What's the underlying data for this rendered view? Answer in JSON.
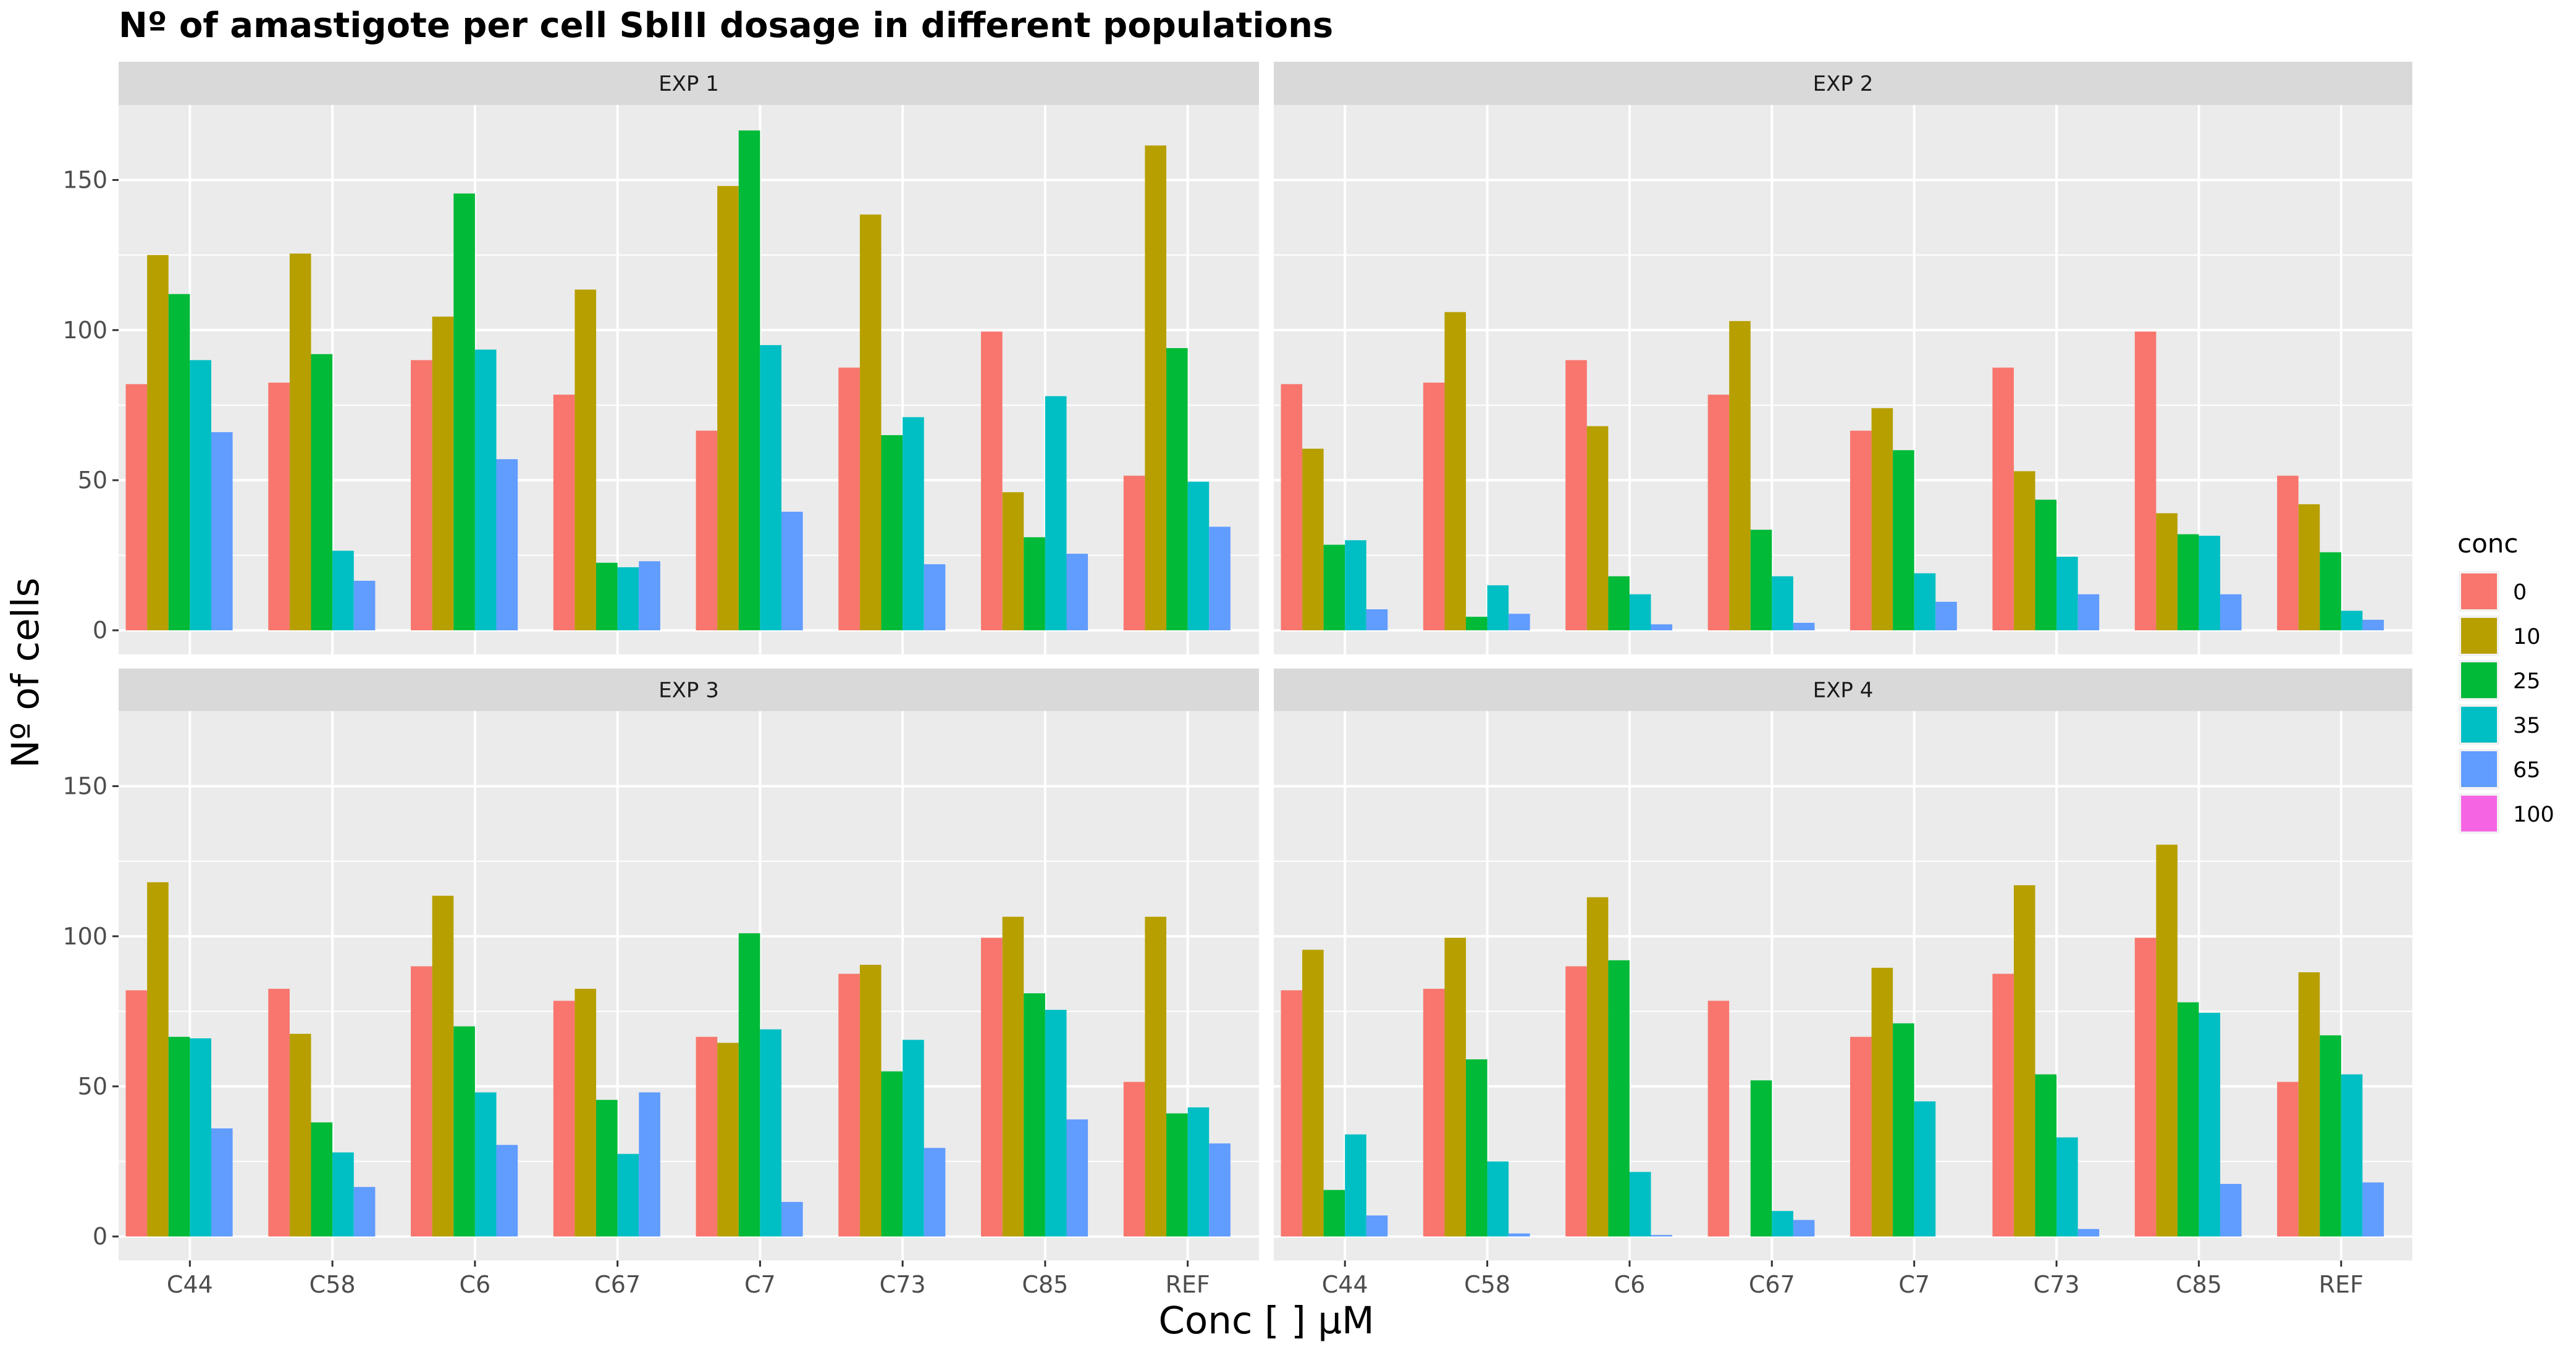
{
  "chart_data": {
    "type": "bar",
    "title": "Nº of amastigote per cell SbIII dosage in different populations",
    "xlabel": "Conc [   ] µM",
    "ylabel": "Nº of cells",
    "ylim": [
      -8,
      175
    ],
    "yticks": [
      0,
      50,
      100,
      150
    ],
    "categories": [
      "C44",
      "C58",
      "C6",
      "C67",
      "C7",
      "C73",
      "C85",
      "REF"
    ],
    "legend": {
      "title": "conc",
      "placement": "right",
      "keys": [
        "0",
        "10",
        "25",
        "35",
        "65",
        "100"
      ],
      "colors": [
        "#F8766D",
        "#B79F00",
        "#00BA38",
        "#00BFC4",
        "#619CFF",
        "#F564E3"
      ]
    },
    "grid": true,
    "panels": [
      {
        "label": "EXP 1",
        "series": [
          {
            "name": "0",
            "values": [
              82,
              82.5,
              90,
              78.5,
              66.5,
              87.5,
              99.5,
              51.5
            ]
          },
          {
            "name": "10",
            "values": [
              125,
              125.5,
              104.5,
              113.5,
              148,
              138.5,
              46,
              161.5
            ]
          },
          {
            "name": "25",
            "values": [
              112,
              92,
              145.5,
              22.5,
              166.5,
              65,
              31,
              94
            ]
          },
          {
            "name": "35",
            "values": [
              90,
              26.5,
              93.5,
              21,
              95,
              71,
              78,
              49.5
            ]
          },
          {
            "name": "65",
            "values": [
              66,
              16.5,
              57,
              23,
              39.5,
              22,
              25.5,
              34.5
            ]
          },
          {
            "name": "100",
            "values": [
              0,
              0,
              0,
              0,
              0,
              0,
              0,
              0
            ]
          }
        ]
      },
      {
        "label": "EXP 2",
        "series": [
          {
            "name": "0",
            "values": [
              82,
              82.5,
              90,
              78.5,
              66.5,
              87.5,
              99.5,
              51.5
            ]
          },
          {
            "name": "10",
            "values": [
              60.5,
              106,
              68,
              103,
              74,
              53,
              39,
              42
            ]
          },
          {
            "name": "25",
            "values": [
              28.5,
              4.5,
              18,
              33.5,
              60,
              43.5,
              32,
              26
            ]
          },
          {
            "name": "35",
            "values": [
              30,
              15,
              12,
              18,
              19,
              24.5,
              31.5,
              6.5
            ]
          },
          {
            "name": "65",
            "values": [
              7,
              5.5,
              2,
              2.5,
              9.5,
              12,
              12,
              3.5
            ]
          },
          {
            "name": "100",
            "values": [
              0,
              0,
              0,
              0,
              0,
              0,
              0,
              0
            ]
          }
        ]
      },
      {
        "label": "EXP 3",
        "series": [
          {
            "name": "0",
            "values": [
              82,
              82.5,
              90,
              78.5,
              66.5,
              87.5,
              99.5,
              51.5
            ]
          },
          {
            "name": "10",
            "values": [
              118,
              67.5,
              113.5,
              82.5,
              64.5,
              90.5,
              106.5,
              106.5
            ]
          },
          {
            "name": "25",
            "values": [
              66.5,
              38,
              70,
              45.5,
              101,
              55,
              81,
              41
            ]
          },
          {
            "name": "35",
            "values": [
              66,
              28,
              48,
              27.5,
              69,
              65.5,
              75.5,
              43
            ]
          },
          {
            "name": "65",
            "values": [
              36,
              16.5,
              30.5,
              48,
              11.5,
              29.5,
              39,
              31
            ]
          },
          {
            "name": "100",
            "values": [
              0,
              0,
              0,
              0,
              0,
              0,
              0,
              0
            ]
          }
        ]
      },
      {
        "label": "EXP 4",
        "series": [
          {
            "name": "0",
            "values": [
              82,
              82.5,
              90,
              78.5,
              66.5,
              87.5,
              99.5,
              51.5
            ]
          },
          {
            "name": "10",
            "values": [
              95.5,
              99.5,
              113,
              0,
              89.5,
              117,
              130.5,
              88
            ]
          },
          {
            "name": "25",
            "values": [
              15.5,
              59,
              92,
              52,
              71,
              54,
              78,
              67
            ]
          },
          {
            "name": "35",
            "values": [
              34,
              25,
              21.5,
              8.5,
              45,
              33,
              74.5,
              54
            ]
          },
          {
            "name": "65",
            "values": [
              7,
              1,
              0.5,
              5.5,
              0,
              2.5,
              17.5,
              18
            ]
          },
          {
            "name": "100",
            "values": [
              0,
              0,
              0,
              0,
              0,
              0,
              0,
              0
            ]
          }
        ]
      }
    ]
  }
}
